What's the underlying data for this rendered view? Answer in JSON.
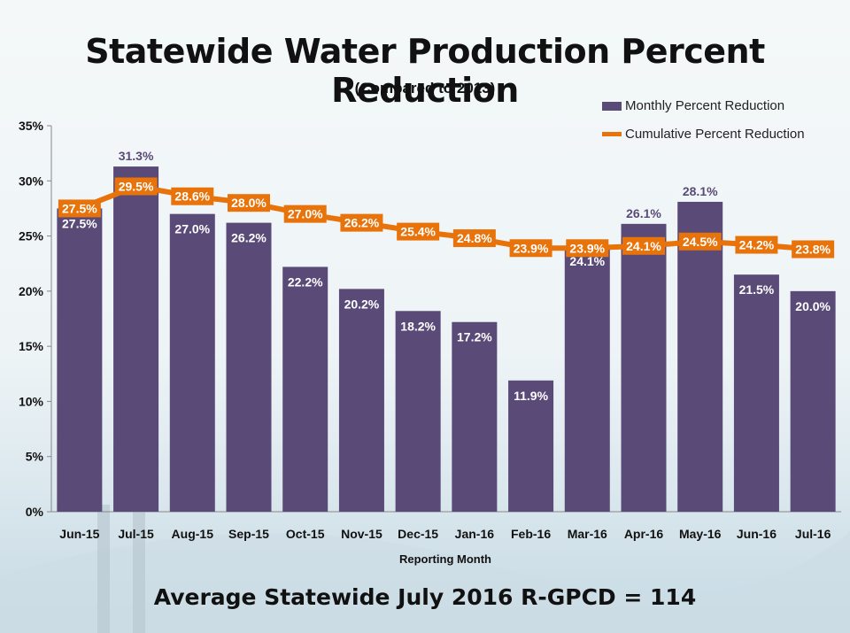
{
  "chart_data": {
    "type": "bar",
    "title": "Statewide Water Production Percent Reduction",
    "subtitle": "(Compared to 2013)",
    "xlabel": "Reporting Month",
    "ylabel": "",
    "ylim": [
      0,
      35
    ],
    "yticks": [
      "0%",
      "5%",
      "10%",
      "15%",
      "20%",
      "25%",
      "30%",
      "35%"
    ],
    "categories": [
      "Jun-15",
      "Jul-15",
      "Aug-15",
      "Sep-15",
      "Oct-15",
      "Nov-15",
      "Dec-15",
      "Jan-16",
      "Feb-16",
      "Mar-16",
      "Apr-16",
      "May-16",
      "Jun-16",
      "Jul-16"
    ],
    "series": [
      {
        "name": "Monthly Percent Reduction",
        "type": "bar",
        "color": "#5a4a78",
        "values": [
          27.5,
          31.3,
          27.0,
          26.2,
          22.2,
          20.2,
          18.2,
          17.2,
          11.9,
          24.1,
          26.1,
          28.1,
          21.5,
          20.0
        ],
        "labels": [
          "27.5%",
          "31.3%",
          "27.0%",
          "26.2%",
          "22.2%",
          "20.2%",
          "18.2%",
          "17.2%",
          "11.9%",
          "24.1%",
          "26.1%",
          "28.1%",
          "21.5%",
          "20.0%"
        ]
      },
      {
        "name": "Cumulative Percent Reduction",
        "type": "line",
        "color": "#e8730a",
        "values": [
          27.5,
          29.5,
          28.6,
          28.0,
          27.0,
          26.2,
          25.4,
          24.8,
          23.9,
          23.9,
          24.1,
          24.5,
          24.2,
          23.8
        ],
        "labels": [
          "27.5%",
          "29.5%",
          "28.6%",
          "28.0%",
          "27.0%",
          "26.2%",
          "25.4%",
          "24.8%",
          "23.9%",
          "23.9%",
          "24.1%",
          "24.5%",
          "24.2%",
          "23.8%"
        ]
      }
    ],
    "legend": "top-right",
    "grid": false
  },
  "footer": "Average Statewide July 2016 R-GPCD = 114"
}
